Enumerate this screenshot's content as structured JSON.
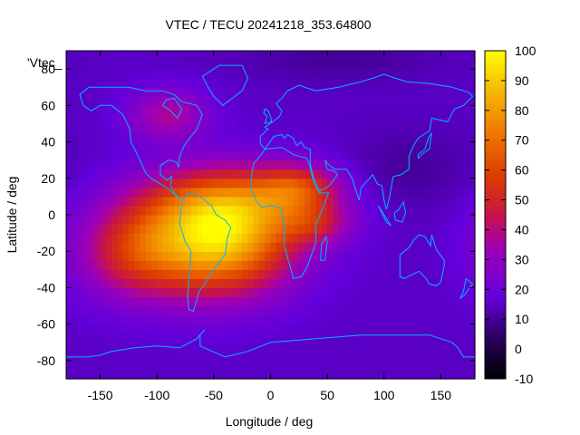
{
  "chart_data": {
    "type": "heatmap",
    "title": "VTEC / TECU 20241218_353.64800",
    "xlabel": "Longitude / deg",
    "ylabel": "Latitude / deg",
    "xlim": [
      -180,
      180
    ],
    "ylim": [
      -90,
      90
    ],
    "xticks": [
      -150,
      -100,
      -50,
      0,
      50,
      100,
      150
    ],
    "yticks": [
      -80,
      -60,
      -40,
      -20,
      0,
      20,
      40,
      60,
      80
    ],
    "legend_label": "'Vtec_",
    "colorbar": {
      "min": -10,
      "max": 100,
      "ticks": [
        -10,
        0,
        10,
        20,
        30,
        40,
        50,
        60,
        70,
        80,
        90,
        100
      ]
    },
    "grid_step_deg": 5,
    "background_value": 15,
    "features": [
      {
        "name": "southern_hemisphere_peak",
        "lon": -45,
        "lat": -15,
        "peak": 70,
        "sigma_lon": 45,
        "sigma_lat": 20
      },
      {
        "name": "equatorial_belt",
        "lon": -35,
        "lat": 8,
        "peak": 35,
        "sigma_lon": 55,
        "sigma_lat": 14
      },
      {
        "name": "pacific_extension",
        "lon": -120,
        "lat": -20,
        "peak": 32,
        "sigma_lon": 35,
        "sigma_lat": 18
      },
      {
        "name": "atlantic_africa_tongue",
        "lon": 25,
        "lat": 15,
        "peak": 30,
        "sigma_lon": 25,
        "sigma_lat": 9
      },
      {
        "name": "africa_south_tongue",
        "lon": 40,
        "lat": -5,
        "peak": 20,
        "sigma_lon": 22,
        "sigma_lat": 8
      },
      {
        "name": "north_america_patch",
        "lon": -90,
        "lat": 55,
        "peak": 22,
        "sigma_lon": 25,
        "sigma_lat": 10
      },
      {
        "name": "asia_low",
        "lon": 120,
        "lat": 25,
        "peak": -5,
        "sigma_lon": 40,
        "sigma_lat": 15
      },
      {
        "name": "arctic_low",
        "lon": 60,
        "lat": 85,
        "peak": -5,
        "sigma_lon": 60,
        "sigma_lat": 8
      }
    ],
    "coastlines": [
      {
        "name": "north-america",
        "points": [
          [
            -168,
            66
          ],
          [
            -160,
            70
          ],
          [
            -140,
            70
          ],
          [
            -125,
            70
          ],
          [
            -110,
            68
          ],
          [
            -95,
            68
          ],
          [
            -85,
            66
          ],
          [
            -78,
            62
          ],
          [
            -65,
            60
          ],
          [
            -60,
            55
          ],
          [
            -65,
            47
          ],
          [
            -70,
            43
          ],
          [
            -76,
            38
          ],
          [
            -80,
            32
          ],
          [
            -81,
            26
          ],
          [
            -83,
            29
          ],
          [
            -90,
            30
          ],
          [
            -97,
            27
          ],
          [
            -97,
            22
          ],
          [
            -91,
            19
          ],
          [
            -87,
            21
          ],
          [
            -88,
            16
          ],
          [
            -83,
            10
          ],
          [
            -79,
            9
          ],
          [
            -86,
            12
          ],
          [
            -92,
            15
          ],
          [
            -105,
            20
          ],
          [
            -110,
            23
          ],
          [
            -115,
            30
          ],
          [
            -118,
            34
          ],
          [
            -123,
            40
          ],
          [
            -124,
            47
          ],
          [
            -130,
            55
          ],
          [
            -140,
            60
          ],
          [
            -150,
            60
          ],
          [
            -158,
            57
          ],
          [
            -165,
            60
          ],
          [
            -168,
            66
          ]
        ]
      },
      {
        "name": "hudson-bay",
        "points": [
          [
            -95,
            60
          ],
          [
            -88,
            57
          ],
          [
            -82,
            53
          ],
          [
            -78,
            58
          ],
          [
            -85,
            64
          ],
          [
            -92,
            63
          ],
          [
            -95,
            60
          ]
        ]
      },
      {
        "name": "greenland",
        "points": [
          [
            -60,
            76
          ],
          [
            -45,
            82
          ],
          [
            -25,
            82
          ],
          [
            -20,
            75
          ],
          [
            -25,
            68
          ],
          [
            -42,
            60
          ],
          [
            -50,
            65
          ],
          [
            -55,
            70
          ],
          [
            -60,
            76
          ]
        ]
      },
      {
        "name": "south-america",
        "points": [
          [
            -78,
            8
          ],
          [
            -72,
            12
          ],
          [
            -62,
            10
          ],
          [
            -52,
            5
          ],
          [
            -48,
            0
          ],
          [
            -40,
            -3
          ],
          [
            -35,
            -7
          ],
          [
            -38,
            -13
          ],
          [
            -40,
            -22
          ],
          [
            -48,
            -28
          ],
          [
            -55,
            -35
          ],
          [
            -58,
            -38
          ],
          [
            -63,
            -42
          ],
          [
            -65,
            -47
          ],
          [
            -68,
            -53
          ],
          [
            -72,
            -52
          ],
          [
            -73,
            -45
          ],
          [
            -72,
            -37
          ],
          [
            -71,
            -30
          ],
          [
            -70,
            -20
          ],
          [
            -75,
            -15
          ],
          [
            -80,
            -5
          ],
          [
            -78,
            8
          ]
        ]
      },
      {
        "name": "africa",
        "points": [
          [
            -17,
            20
          ],
          [
            -15,
            28
          ],
          [
            -8,
            33
          ],
          [
            -5,
            36
          ],
          [
            10,
            37
          ],
          [
            20,
            33
          ],
          [
            32,
            31
          ],
          [
            34,
            28
          ],
          [
            38,
            18
          ],
          [
            43,
            12
          ],
          [
            51,
            12
          ],
          [
            45,
            2
          ],
          [
            40,
            -5
          ],
          [
            40,
            -15
          ],
          [
            35,
            -24
          ],
          [
            32,
            -29
          ],
          [
            27,
            -34
          ],
          [
            20,
            -35
          ],
          [
            18,
            -30
          ],
          [
            12,
            -17
          ],
          [
            12,
            -5
          ],
          [
            9,
            4
          ],
          [
            0,
            5
          ],
          [
            -8,
            4
          ],
          [
            -13,
            8
          ],
          [
            -17,
            14
          ],
          [
            -17,
            20
          ]
        ]
      },
      {
        "name": "madagascar",
        "points": [
          [
            44,
            -25
          ],
          [
            48,
            -25
          ],
          [
            50,
            -15
          ],
          [
            49,
            -12
          ],
          [
            45,
            -16
          ],
          [
            44,
            -25
          ]
        ]
      },
      {
        "name": "eurasia",
        "points": [
          [
            -9,
            39
          ],
          [
            -9,
            43
          ],
          [
            -2,
            47
          ],
          [
            -5,
            48
          ],
          [
            2,
            51
          ],
          [
            8,
            54
          ],
          [
            10,
            57
          ],
          [
            5,
            61
          ],
          [
            10,
            64
          ],
          [
            15,
            68
          ],
          [
            25,
            71
          ],
          [
            40,
            68
          ],
          [
            60,
            70
          ],
          [
            80,
            73
          ],
          [
            100,
            77
          ],
          [
            120,
            73
          ],
          [
            140,
            72
          ],
          [
            160,
            70
          ],
          [
            175,
            67
          ],
          [
            178,
            65
          ],
          [
            170,
            60
          ],
          [
            162,
            58
          ],
          [
            156,
            51
          ],
          [
            142,
            53
          ],
          [
            140,
            46
          ],
          [
            130,
            42
          ],
          [
            126,
            38
          ],
          [
            122,
            32
          ],
          [
            122,
            25
          ],
          [
            115,
            22
          ],
          [
            108,
            21
          ],
          [
            105,
            10
          ],
          [
            102,
            3
          ],
          [
            100,
            8
          ],
          [
            98,
            16
          ],
          [
            94,
            17
          ],
          [
            90,
            22
          ],
          [
            80,
            15
          ],
          [
            78,
            8
          ],
          [
            72,
            20
          ],
          [
            67,
            25
          ],
          [
            57,
            25
          ],
          [
            52,
            27
          ],
          [
            48,
            30
          ],
          [
            50,
            25
          ],
          [
            56,
            24
          ],
          [
            59,
            22
          ],
          [
            52,
            16
          ],
          [
            43,
            13
          ],
          [
            38,
            20
          ],
          [
            35,
            28
          ],
          [
            35,
            36
          ],
          [
            30,
            37
          ],
          [
            27,
            40
          ],
          [
            23,
            38
          ],
          [
            20,
            42
          ],
          [
            15,
            44
          ],
          [
            12,
            42
          ],
          [
            10,
            44
          ],
          [
            3,
            43
          ],
          [
            -5,
            36
          ],
          [
            -9,
            39
          ]
        ]
      },
      {
        "name": "british-isles",
        "points": [
          [
            -5,
            50
          ],
          [
            1,
            51
          ],
          [
            0,
            54
          ],
          [
            -2,
            57
          ],
          [
            -5,
            58
          ],
          [
            -6,
            56
          ],
          [
            -3,
            54
          ],
          [
            -5,
            50
          ]
        ]
      },
      {
        "name": "japan",
        "points": [
          [
            130,
            31
          ],
          [
            135,
            34
          ],
          [
            140,
            36
          ],
          [
            141,
            41
          ],
          [
            142,
            45
          ],
          [
            139,
            42
          ],
          [
            136,
            36
          ],
          [
            130,
            33
          ],
          [
            130,
            31
          ]
        ]
      },
      {
        "name": "australia",
        "points": [
          [
            114,
            -22
          ],
          [
            114,
            -34
          ],
          [
            118,
            -35
          ],
          [
            124,
            -33
          ],
          [
            131,
            -31
          ],
          [
            137,
            -35
          ],
          [
            140,
            -38
          ],
          [
            146,
            -39
          ],
          [
            150,
            -37
          ],
          [
            153,
            -28
          ],
          [
            153,
            -25
          ],
          [
            146,
            -19
          ],
          [
            142,
            -11
          ],
          [
            141,
            -17
          ],
          [
            136,
            -12
          ],
          [
            131,
            -11
          ],
          [
            126,
            -14
          ],
          [
            122,
            -18
          ],
          [
            114,
            -22
          ]
        ]
      },
      {
        "name": "new-zealand",
        "points": [
          [
            172,
            -35
          ],
          [
            178,
            -38
          ],
          [
            174,
            -41
          ],
          [
            171,
            -44
          ],
          [
            167,
            -46
          ],
          [
            170,
            -42
          ],
          [
            172,
            -35
          ]
        ]
      },
      {
        "name": "borneo",
        "points": [
          [
            109,
            1
          ],
          [
            110,
            -3
          ],
          [
            116,
            -4
          ],
          [
            119,
            1
          ],
          [
            117,
            7
          ],
          [
            113,
            3
          ],
          [
            109,
            1
          ]
        ]
      },
      {
        "name": "sumatra",
        "points": [
          [
            95,
            5
          ],
          [
            106,
            -6
          ],
          [
            102,
            -4
          ],
          [
            98,
            1
          ],
          [
            95,
            5
          ]
        ]
      },
      {
        "name": "antarctica",
        "points": [
          [
            -180,
            -78
          ],
          [
            -160,
            -78
          ],
          [
            -150,
            -77
          ],
          [
            -140,
            -75
          ],
          [
            -120,
            -73
          ],
          [
            -100,
            -72
          ],
          [
            -80,
            -73
          ],
          [
            -65,
            -68
          ],
          [
            -58,
            -63
          ],
          [
            -62,
            -66
          ],
          [
            -62,
            -72
          ],
          [
            -40,
            -78
          ],
          [
            -20,
            -75
          ],
          [
            0,
            -70
          ],
          [
            20,
            -69
          ],
          [
            40,
            -68
          ],
          [
            60,
            -67
          ],
          [
            80,
            -66
          ],
          [
            100,
            -66
          ],
          [
            120,
            -66
          ],
          [
            140,
            -66
          ],
          [
            160,
            -70
          ],
          [
            165,
            -73
          ],
          [
            170,
            -78
          ],
          [
            180,
            -78
          ]
        ]
      }
    ]
  }
}
